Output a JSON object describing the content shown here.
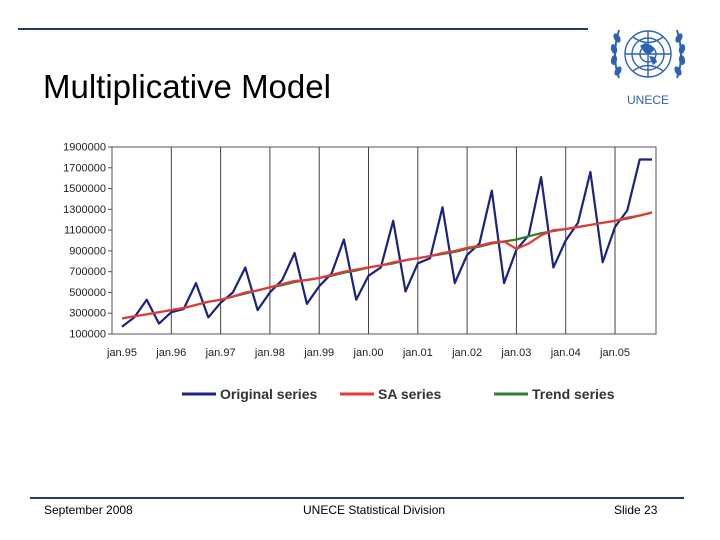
{
  "slide": {
    "title": "Multiplicative Model",
    "logo_text": "UNECE",
    "footer_left": "September 2008",
    "footer_center": "UNECE Statistical Division",
    "footer_right": "Slide 23",
    "colors": {
      "rule": "#1f3f6b",
      "logo": "#2b63b6"
    }
  },
  "chart_data": {
    "type": "line",
    "title": "",
    "xlabel": "",
    "ylabel": "",
    "ylim": [
      100000,
      1900000
    ],
    "y_ticks": [
      "100000",
      "300000",
      "500000",
      "700000",
      "900000",
      "1100000",
      "1300000",
      "1500000",
      "1700000",
      "1900000"
    ],
    "x_tick_labels": [
      "jan.95",
      "jan.96",
      "jan.97",
      "jan.98",
      "jan.99",
      "jan.00",
      "jan.01",
      "jan.02",
      "jan.03",
      "jan.04",
      "jan.05"
    ],
    "x_quarters": [
      "1995Q1",
      "1995Q2",
      "1995Q3",
      "1995Q4",
      "1996Q1",
      "1996Q2",
      "1996Q3",
      "1996Q4",
      "1997Q1",
      "1997Q2",
      "1997Q3",
      "1997Q4",
      "1998Q1",
      "1998Q2",
      "1998Q3",
      "1998Q4",
      "1999Q1",
      "1999Q2",
      "1999Q3",
      "1999Q4",
      "2000Q1",
      "2000Q2",
      "2000Q3",
      "2000Q4",
      "2001Q1",
      "2001Q2",
      "2001Q3",
      "2001Q4",
      "2002Q1",
      "2002Q2",
      "2002Q3",
      "2002Q4",
      "2003Q1",
      "2003Q2",
      "2003Q3",
      "2003Q4",
      "2004Q1",
      "2004Q2",
      "2004Q3",
      "2004Q4",
      "2005Q1",
      "2005Q2",
      "2005Q3",
      "2005Q4"
    ],
    "grid": "vertical lines at each jan",
    "legend_position": "bottom",
    "series": [
      {
        "name": "Original series",
        "color": "#1a237e",
        "values": [
          170000,
          260000,
          430000,
          200000,
          310000,
          340000,
          590000,
          260000,
          400000,
          500000,
          740000,
          330000,
          500000,
          620000,
          880000,
          390000,
          560000,
          680000,
          1010000,
          430000,
          660000,
          740000,
          1190000,
          510000,
          780000,
          830000,
          1320000,
          590000,
          860000,
          970000,
          1480000,
          590000,
          910000,
          1050000,
          1610000,
          740000,
          1000000,
          1170000,
          1660000,
          790000,
          1130000,
          1290000,
          1780000,
          1780000
        ]
      },
      {
        "name": "SA series",
        "color": "#e53935",
        "values": [
          250000,
          270000,
          290000,
          310000,
          330000,
          350000,
          380000,
          410000,
          430000,
          460000,
          500000,
          520000,
          550000,
          580000,
          610000,
          620000,
          640000,
          670000,
          700000,
          720000,
          740000,
          760000,
          790000,
          810000,
          830000,
          850000,
          880000,
          900000,
          930000,
          950000,
          980000,
          990000,
          920000,
          970000,
          1050000,
          1100000,
          1110000,
          1130000,
          1150000,
          1170000,
          1190000,
          1220000,
          1240000,
          1270000
        ]
      },
      {
        "name": "Trend series",
        "color": "#2e7d32",
        "values": [
          250000,
          270000,
          290000,
          310000,
          330000,
          350000,
          380000,
          410000,
          430000,
          460000,
          490000,
          520000,
          550000,
          570000,
          600000,
          620000,
          640000,
          660000,
          690000,
          710000,
          740000,
          760000,
          780000,
          810000,
          830000,
          850000,
          870000,
          890000,
          920000,
          940000,
          970000,
          990000,
          1010000,
          1040000,
          1070000,
          1090000,
          1110000,
          1130000,
          1150000,
          1170000,
          1190000,
          1210000,
          1240000,
          1270000
        ]
      }
    ]
  }
}
